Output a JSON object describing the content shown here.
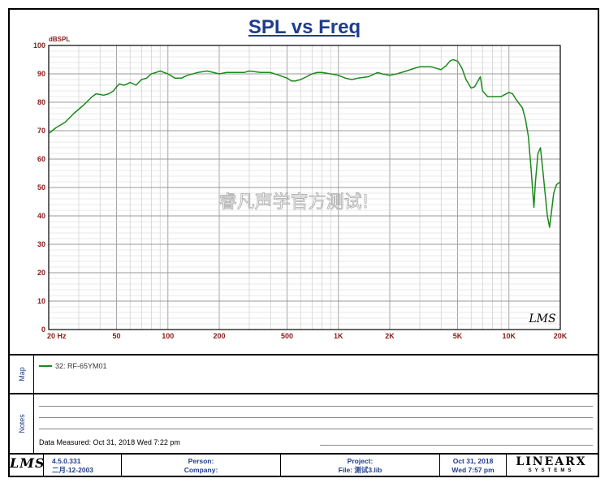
{
  "title": "SPL vs Freq",
  "watermark": "睿凡声学官方测试!",
  "plot_logo": "LMS",
  "chart_data": {
    "type": "line",
    "title": "SPL vs Freq",
    "ylabel": "dBSPL",
    "xlabel": "",
    "xscale": "log",
    "xlim": [
      20,
      20000
    ],
    "ylim": [
      0,
      100
    ],
    "grid": true,
    "y_ticks": [
      0,
      10,
      20,
      30,
      40,
      50,
      60,
      70,
      80,
      90,
      100
    ],
    "x_tick_labels": [
      {
        "v": 20,
        "t": "20  Hz"
      },
      {
        "v": 50,
        "t": "50"
      },
      {
        "v": 100,
        "t": "100"
      },
      {
        "v": 200,
        "t": "200"
      },
      {
        "v": 500,
        "t": "500"
      },
      {
        "v": 1000,
        "t": "1K"
      },
      {
        "v": 2000,
        "t": "2K"
      },
      {
        "v": 5000,
        "t": "5K"
      },
      {
        "v": 10000,
        "t": "10K"
      },
      {
        "v": 20000,
        "t": "20K"
      }
    ],
    "series": [
      {
        "name": "32: RF-65YM01",
        "color": "#1a8a1a",
        "x": [
          20,
          22,
          25,
          28,
          32,
          36,
          38,
          42,
          45,
          48,
          50,
          52,
          55,
          58,
          60,
          65,
          70,
          75,
          80,
          85,
          90,
          95,
          100,
          110,
          120,
          130,
          150,
          170,
          200,
          220,
          250,
          280,
          300,
          350,
          400,
          450,
          500,
          530,
          560,
          600,
          650,
          700,
          750,
          800,
          900,
          1000,
          1100,
          1200,
          1300,
          1500,
          1700,
          1800,
          2000,
          2200,
          2500,
          2800,
          3000,
          3500,
          4000,
          4300,
          4500,
          4700,
          5000,
          5300,
          5600,
          6000,
          6300,
          6800,
          7000,
          7500,
          8000,
          9000,
          10000,
          10500,
          11000,
          12000,
          12500,
          13000,
          13500,
          14000,
          14300,
          14800,
          15300,
          15800,
          16300,
          16800,
          17300,
          17800,
          18300,
          19000,
          20000
        ],
        "y": [
          69,
          71,
          73,
          76,
          79,
          82,
          83,
          82.5,
          83,
          84,
          85.5,
          86.5,
          86,
          86.5,
          87,
          86,
          88,
          88.5,
          90,
          90.5,
          91,
          90.5,
          90,
          88.5,
          88.5,
          89.5,
          90.5,
          91,
          90,
          90.5,
          90.5,
          90.5,
          91,
          90.5,
          90.5,
          89.5,
          88.5,
          87.5,
          87.5,
          88,
          89,
          90,
          90.5,
          90.5,
          90,
          89.5,
          88.5,
          88,
          88.5,
          89,
          90.5,
          90,
          89.5,
          90,
          91,
          92,
          92.5,
          92.5,
          91.5,
          93,
          94.5,
          95,
          94.5,
          92,
          88,
          85,
          85.5,
          89,
          84,
          82,
          82,
          82,
          83.5,
          83,
          81,
          78,
          74,
          68,
          56,
          43,
          52,
          62,
          64,
          56,
          48,
          40,
          36,
          42,
          48,
          51,
          52
        ]
      }
    ]
  },
  "map": {
    "label": "Map",
    "legend_label": "32: RF-65YM01"
  },
  "notes": {
    "label": "Notes",
    "data_measured": "Data Measured: Oct 31, 2018  Wed  7:22 pm"
  },
  "footer": {
    "logo": "LMS",
    "version": "4.5.0.331",
    "build_date": "二月-12-2003",
    "person_label": "Person:",
    "company_label": "Company:",
    "project_label": "Project:",
    "file_label": "File: 测试3.lib",
    "date": "Oct 31, 2018",
    "datetime": "Wed  7:57 pm",
    "brand": "LINEARX",
    "brand_sub": "SYSTEMS"
  }
}
